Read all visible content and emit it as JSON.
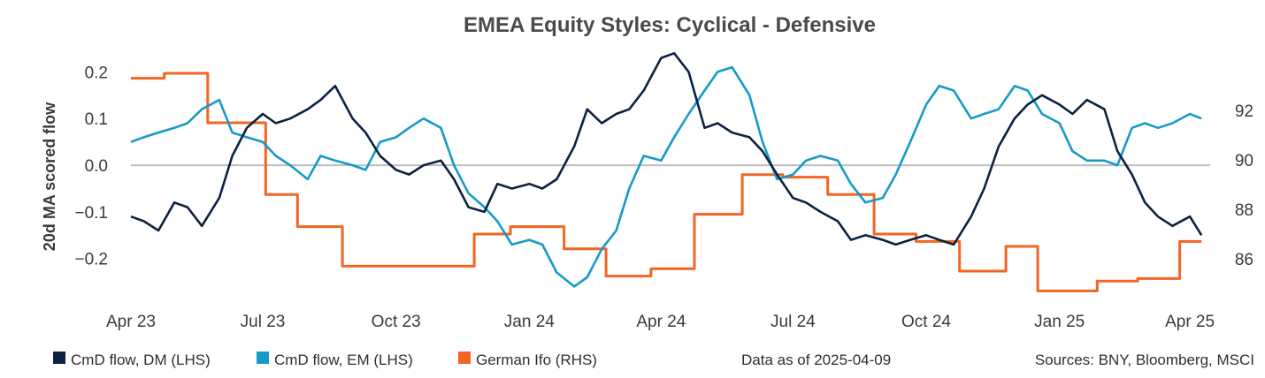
{
  "chart_data": {
    "type": "line",
    "title": "EMEA Equity Styles:  Cyclical - Defensive",
    "ylabel": "20d MA scored flow",
    "y2label": "",
    "ylim": [
      -0.28,
      0.25
    ],
    "y2lim": [
      84.5,
      94.5
    ],
    "xlim": [
      "2023-04-01",
      "2025-04-15"
    ],
    "y_ticks": [
      0.2,
      0.1,
      0.0,
      -0.1,
      -0.2
    ],
    "y_tick_labels": [
      "0.2",
      "0.1",
      "0.0",
      "−0.1",
      "−0.2"
    ],
    "y2_ticks": [
      92,
      90,
      88,
      86
    ],
    "y2_tick_labels": [
      "92",
      "90",
      "88",
      "86"
    ],
    "x_ticks": [
      "2023-04-01",
      "2023-07-01",
      "2023-10-01",
      "2024-01-01",
      "2024-04-01",
      "2024-07-01",
      "2024-10-01",
      "2025-01-01",
      "2025-04-01"
    ],
    "x_tick_labels": [
      "Apr 23",
      "Jul 23",
      "Oct 23",
      "Jan 24",
      "Apr 24",
      "Jul 24",
      "Oct 24",
      "Jan 25",
      "Apr 25"
    ],
    "zero_line": true,
    "legend_position": "bottom-left",
    "series": [
      {
        "name": "CmD flow, DM (LHS)",
        "axis": "left",
        "color": "#0b2240",
        "x": [
          "2023-04-01",
          "2023-04-10",
          "2023-04-20",
          "2023-05-01",
          "2023-05-10",
          "2023-05-20",
          "2023-06-01",
          "2023-06-10",
          "2023-06-20",
          "2023-07-01",
          "2023-07-10",
          "2023-07-20",
          "2023-08-01",
          "2023-08-10",
          "2023-08-20",
          "2023-09-01",
          "2023-09-10",
          "2023-09-20",
          "2023-10-01",
          "2023-10-10",
          "2023-10-20",
          "2023-11-01",
          "2023-11-10",
          "2023-11-20",
          "2023-12-01",
          "2023-12-10",
          "2023-12-20",
          "2024-01-01",
          "2024-01-10",
          "2024-01-20",
          "2024-02-01",
          "2024-02-10",
          "2024-02-20",
          "2024-03-01",
          "2024-03-10",
          "2024-03-20",
          "2024-04-01",
          "2024-04-10",
          "2024-04-20",
          "2024-05-01",
          "2024-05-10",
          "2024-05-20",
          "2024-06-01",
          "2024-06-10",
          "2024-06-20",
          "2024-07-01",
          "2024-07-10",
          "2024-07-20",
          "2024-08-01",
          "2024-08-10",
          "2024-08-20",
          "2024-09-01",
          "2024-09-10",
          "2024-09-20",
          "2024-10-01",
          "2024-10-10",
          "2024-10-20",
          "2024-11-01",
          "2024-11-10",
          "2024-11-20",
          "2024-12-01",
          "2024-12-10",
          "2024-12-20",
          "2025-01-01",
          "2025-01-10",
          "2025-01-20",
          "2025-02-01",
          "2025-02-10",
          "2025-02-20",
          "2025-03-01",
          "2025-03-10",
          "2025-03-20",
          "2025-04-01",
          "2025-04-09"
        ],
        "values": [
          -0.11,
          -0.12,
          -0.14,
          -0.08,
          -0.09,
          -0.13,
          -0.07,
          0.02,
          0.08,
          0.11,
          0.09,
          0.1,
          0.12,
          0.14,
          0.17,
          0.1,
          0.07,
          0.02,
          -0.01,
          -0.02,
          0.0,
          0.01,
          -0.03,
          -0.09,
          -0.1,
          -0.04,
          -0.05,
          -0.04,
          -0.05,
          -0.03,
          0.04,
          0.12,
          0.09,
          0.11,
          0.12,
          0.16,
          0.23,
          0.24,
          0.2,
          0.08,
          0.09,
          0.07,
          0.06,
          0.03,
          -0.02,
          -0.07,
          -0.08,
          -0.1,
          -0.12,
          -0.16,
          -0.15,
          -0.16,
          -0.17,
          -0.16,
          -0.15,
          -0.16,
          -0.17,
          -0.11,
          -0.05,
          0.04,
          0.1,
          0.13,
          0.15,
          0.13,
          0.11,
          0.14,
          0.12,
          0.03,
          -0.02,
          -0.08,
          -0.11,
          -0.13,
          -0.11,
          -0.15
        ]
      },
      {
        "name": "CmD flow, EM (LHS)",
        "axis": "left",
        "color": "#159ac9",
        "x": [
          "2023-04-01",
          "2023-04-10",
          "2023-04-20",
          "2023-05-01",
          "2023-05-10",
          "2023-05-20",
          "2023-06-01",
          "2023-06-10",
          "2023-06-20",
          "2023-07-01",
          "2023-07-10",
          "2023-07-20",
          "2023-08-01",
          "2023-08-10",
          "2023-08-20",
          "2023-09-01",
          "2023-09-10",
          "2023-09-20",
          "2023-10-01",
          "2023-10-10",
          "2023-10-20",
          "2023-11-01",
          "2023-11-10",
          "2023-11-20",
          "2023-12-01",
          "2023-12-10",
          "2023-12-20",
          "2024-01-01",
          "2024-01-10",
          "2024-01-20",
          "2024-02-01",
          "2024-02-10",
          "2024-02-20",
          "2024-03-01",
          "2024-03-10",
          "2024-03-20",
          "2024-04-01",
          "2024-04-10",
          "2024-04-20",
          "2024-05-01",
          "2024-05-10",
          "2024-05-20",
          "2024-06-01",
          "2024-06-10",
          "2024-06-20",
          "2024-07-01",
          "2024-07-10",
          "2024-07-20",
          "2024-08-01",
          "2024-08-10",
          "2024-08-20",
          "2024-09-01",
          "2024-09-10",
          "2024-09-20",
          "2024-10-01",
          "2024-10-10",
          "2024-10-20",
          "2024-11-01",
          "2024-11-10",
          "2024-11-20",
          "2024-12-01",
          "2024-12-10",
          "2024-12-20",
          "2025-01-01",
          "2025-01-10",
          "2025-01-20",
          "2025-02-01",
          "2025-02-10",
          "2025-02-20",
          "2025-03-01",
          "2025-03-10",
          "2025-03-20",
          "2025-04-01",
          "2025-04-09"
        ],
        "values": [
          0.05,
          0.06,
          0.07,
          0.08,
          0.09,
          0.12,
          0.14,
          0.07,
          0.06,
          0.05,
          0.02,
          0.0,
          -0.03,
          0.02,
          0.01,
          0.0,
          -0.01,
          0.05,
          0.06,
          0.08,
          0.1,
          0.08,
          0.0,
          -0.06,
          -0.09,
          -0.12,
          -0.17,
          -0.16,
          -0.17,
          -0.23,
          -0.26,
          -0.24,
          -0.18,
          -0.14,
          -0.05,
          0.02,
          0.01,
          0.06,
          0.11,
          0.16,
          0.2,
          0.21,
          0.15,
          0.05,
          -0.03,
          -0.02,
          0.01,
          0.02,
          0.01,
          -0.04,
          -0.08,
          -0.07,
          -0.02,
          0.05,
          0.13,
          0.17,
          0.16,
          0.1,
          0.11,
          0.12,
          0.17,
          0.16,
          0.11,
          0.09,
          0.03,
          0.01,
          0.01,
          0.0,
          0.08,
          0.09,
          0.08,
          0.09,
          0.11,
          0.1
        ]
      },
      {
        "name": "German Ifo (RHS)",
        "axis": "right",
        "color": "#f26522",
        "step": true,
        "x": [
          "2023-04-01",
          "2023-04-24",
          "2023-05-24",
          "2023-06-05",
          "2023-06-26",
          "2023-07-03",
          "2023-07-25",
          "2023-08-25",
          "2023-09-25",
          "2023-10-25",
          "2023-11-24",
          "2023-12-19",
          "2024-01-25",
          "2024-02-23",
          "2024-03-25",
          "2024-04-24",
          "2024-05-27",
          "2024-06-24",
          "2024-07-25",
          "2024-08-26",
          "2024-09-24",
          "2024-10-24",
          "2024-11-25",
          "2024-12-17",
          "2025-01-27",
          "2025-02-24",
          "2025-03-25",
          "2025-04-09"
        ],
        "values": [
          93.3,
          93.5,
          91.5,
          91.5,
          91.5,
          88.6,
          87.3,
          85.7,
          85.7,
          85.7,
          87.0,
          87.3,
          86.4,
          85.3,
          85.6,
          87.8,
          89.4,
          89.3,
          88.6,
          87.0,
          86.7,
          85.5,
          86.5,
          84.7,
          85.1,
          85.2,
          86.7,
          86.7
        ]
      }
    ]
  },
  "footer": {
    "as_of": "Data as of 2025-04-09",
    "sources": "Sources:  BNY, Bloomberg, MSCI"
  }
}
